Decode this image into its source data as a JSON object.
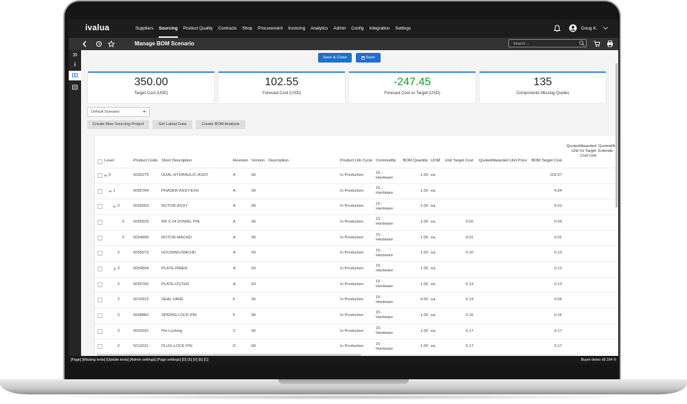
{
  "nav": {
    "logo": "ivalua",
    "menu": [
      "Suppliers",
      "Sourcing",
      "Product Quality",
      "Contracts",
      "Shop",
      "Procurement",
      "Invoicing",
      "Analytics",
      "Admin",
      "Config",
      "Integration",
      "Settings"
    ],
    "user": "Doug K."
  },
  "toolbar": {
    "title": "Manage BOM Scenario",
    "search": "Search ..."
  },
  "actions": [
    "Save & Close",
    "Save"
  ],
  "kpis": [
    {
      "value": "350.00",
      "label": "Target Cost (USD)"
    },
    {
      "value": "102.55",
      "label": "Forecast Cost (USD)"
    },
    {
      "value": "-247.45",
      "label": "Forecast Cost vs Target (USD)"
    },
    {
      "value": "135",
      "label": "Components Missing Quotes"
    }
  ],
  "scenario": "Default Scenario",
  "buttons": [
    "Create New Sourcing Project",
    "Get Latest Data",
    "Create BOM Analysis"
  ],
  "table": {
    "columns": [
      "Level",
      "Product Code",
      "Short Description",
      "Revision",
      "Version",
      "Description",
      "Product Life Cycle",
      "Commodity",
      "BOM Quantity",
      "UOM",
      "Unit Target Cost",
      "Quoted/Awarded Unit Price",
      "BOM Target Cost",
      "Quoted/Awarded Unit Vs Target Cost Unit",
      "Quoted/A Extende"
    ],
    "rows": [
      [
        "0",
        "5056275",
        "DUAL-HYDRAULIC-ASSY",
        "A",
        "66",
        null,
        "In Production",
        "15 - Hardware",
        "1.00",
        "ea.",
        null,
        null,
        "102.67",
        null,
        null
      ],
      [
        "1",
        "5055784",
        "PHASER-ASSY-EXH",
        "A",
        "66",
        null,
        "In Production",
        "15 - Hardware",
        "1.00",
        "ea.",
        null,
        null,
        "4.64",
        null,
        null
      ],
      [
        "2",
        "5056559",
        "ROTOR-ASSY",
        "A",
        "66",
        null,
        "In Production",
        "15 - Hardware",
        "1.00",
        "ea.",
        null,
        null,
        "0.51",
        null,
        null
      ],
      [
        "3",
        "5055929",
        "M5 X 24 DOWEL PIN",
        "A",
        "66",
        null,
        "In Production",
        "15 - Hardware",
        "1.00",
        "ea.",
        "0.50",
        null,
        "0.50",
        null,
        null
      ],
      [
        "3",
        "5054896",
        "ROTOR-MACHD",
        "A",
        "66",
        null,
        "In Production",
        "15 - Hardware",
        "1.00",
        "ea.",
        "0.01",
        null,
        "0.01",
        null,
        null
      ],
      [
        "2",
        "5055073",
        "HOUSING-MACHD",
        "A",
        "66",
        null,
        "In Production",
        "15 - Hardware",
        "1.00",
        "ea.",
        "0.10",
        null,
        "0.10",
        null,
        null
      ],
      [
        "2",
        "5054894",
        "PLATE-INNER",
        "A",
        "66",
        null,
        "In Production",
        "15 - Hardware",
        "1.00",
        "ea.",
        null,
        null,
        "0.12",
        null,
        null
      ],
      [
        "2",
        "5055782",
        "PLATE-OUTER",
        "A",
        "66",
        null,
        "In Production",
        "15 - Hardware",
        "1.00",
        "ea.",
        "0.13",
        null,
        "0.13",
        null,
        null
      ],
      [
        "2",
        "5010915",
        "SEAL-VANE",
        "F",
        "66",
        null,
        "In Production",
        "15 - Hardware",
        "4.00",
        "ea.",
        "0.14",
        null,
        "0.56",
        null,
        null
      ],
      [
        "2",
        "5008882",
        "SPRING-LOCK PIN",
        "F",
        "66",
        null,
        "In Production",
        "15 - Hardware",
        "1.00",
        "ea.",
        "0.16",
        null,
        "0.16",
        null,
        null
      ],
      [
        "2",
        "5029181",
        "Pin-Locking",
        "C",
        "66",
        null,
        "In Production",
        "15 - Hardware",
        "1.00",
        "ea.",
        "0.17",
        null,
        "0.17",
        null,
        null
      ],
      [
        "2",
        "5012011",
        "PLUG-LOCK PIN",
        "D",
        "66",
        null,
        "In Production",
        "15 - Hardware",
        "1.00",
        "ea.",
        "0.17",
        null,
        "0.17",
        null,
        null
      ]
    ]
  },
  "footer": {
    "links": "[Page] [Missing texts] [Update texts] [Admin settings] [Page settings] [D] [S] [V] [E] [C]",
    "version": "Buyer demo v8.164 ©"
  }
}
